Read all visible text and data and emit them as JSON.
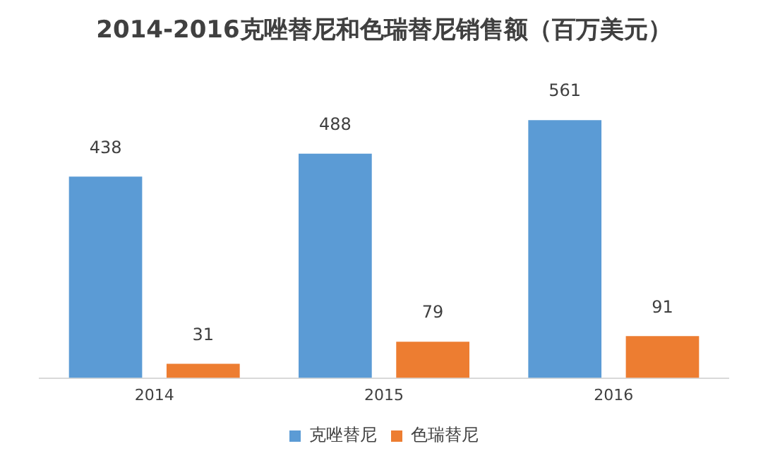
{
  "chart_data": {
    "type": "bar",
    "title": "2014-2016克唑替尼和色瑞替尼销售额（百万美元）",
    "categories": [
      "2014",
      "2015",
      "2016"
    ],
    "series": [
      {
        "name": "克唑替尼",
        "color": "#5b9bd5",
        "values": [
          438,
          488,
          561
        ]
      },
      {
        "name": "色瑞替尼",
        "color": "#ed7d31",
        "values": [
          31,
          79,
          91
        ]
      }
    ],
    "data_labels": true,
    "legend": "bottom",
    "grid": false
  }
}
